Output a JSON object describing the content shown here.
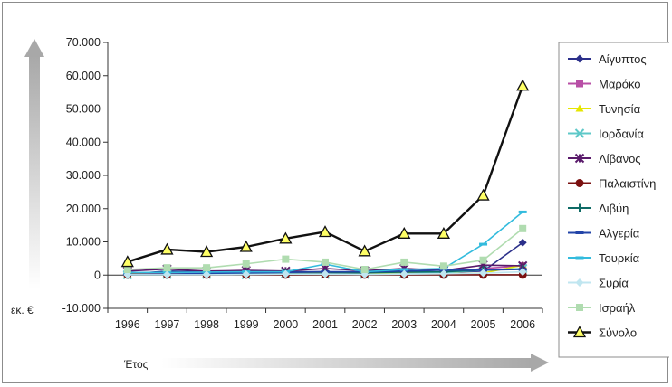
{
  "chart_data": {
    "type": "line",
    "title": "",
    "xlabel": "Έτος",
    "ylabel": "εκ. €",
    "ylim": [
      -10000,
      70000
    ],
    "y_ticks": [
      "-10.000",
      "0",
      "10.000",
      "20.000",
      "30.000",
      "40.000",
      "50.000",
      "60.000",
      "70.000"
    ],
    "categories": [
      "1996",
      "1997",
      "1998",
      "1999",
      "2000",
      "2001",
      "2002",
      "2003",
      "2004",
      "2005",
      "2006"
    ],
    "legend_position": "right",
    "grid": false,
    "series": [
      {
        "name": "Αίγυπτος",
        "color": "#2b2f8a",
        "marker": "diamond",
        "values": [
          300,
          1200,
          1000,
          700,
          1000,
          1000,
          600,
          1500,
          800,
          1200,
          9800
        ]
      },
      {
        "name": "Μαρόκο",
        "color": "#b84fa6",
        "marker": "square",
        "values": [
          300,
          500,
          600,
          800,
          600,
          500,
          400,
          500,
          700,
          2000,
          2800
        ]
      },
      {
        "name": "Τυνησία",
        "color": "#e6e600",
        "marker": "triangle",
        "values": [
          300,
          300,
          400,
          500,
          700,
          500,
          600,
          500,
          500,
          600,
          3000
        ]
      },
      {
        "name": "Ιορδανία",
        "color": "#5ec8c8",
        "marker": "x",
        "values": [
          100,
          200,
          200,
          100,
          400,
          200,
          200,
          400,
          700,
          1500,
          2000
        ]
      },
      {
        "name": "Λίβανος",
        "color": "#5a1a6b",
        "marker": "star",
        "values": [
          1200,
          1800,
          1200,
          1400,
          1200,
          2000,
          1300,
          2000,
          1400,
          3000,
          2800
        ]
      },
      {
        "name": "Παλαιστίνη",
        "color": "#7a1010",
        "marker": "circle",
        "values": [
          100,
          100,
          100,
          100,
          100,
          200,
          100,
          100,
          100,
          100,
          100
        ]
      },
      {
        "name": "Λιβύη",
        "color": "#0f6b66",
        "marker": "plus",
        "values": [
          100,
          100,
          200,
          300,
          500,
          500,
          700,
          900,
          1000,
          1500,
          1800
        ]
      },
      {
        "name": "Αλγερία",
        "color": "#2244a8",
        "marker": "dash",
        "values": [
          200,
          300,
          500,
          600,
          800,
          1000,
          1000,
          1200,
          1500,
          1500,
          1700
        ]
      },
      {
        "name": "Τουρκία",
        "color": "#33bbdd",
        "marker": "dash",
        "values": [
          800,
          800,
          900,
          1000,
          1000,
          3300,
          1000,
          1700,
          2000,
          9300,
          19000
        ]
      },
      {
        "name": "Συρία",
        "color": "#c0e6f0",
        "marker": "diamond",
        "values": [
          100,
          100,
          100,
          200,
          300,
          300,
          200,
          300,
          400,
          600,
          1000
        ]
      },
      {
        "name": "Ισραήλ",
        "color": "#b0dcb0",
        "marker": "square",
        "values": [
          1700,
          2200,
          2200,
          3400,
          4800,
          3900,
          1700,
          3900,
          2700,
          4500,
          14000
        ]
      },
      {
        "name": "Σύνολο",
        "color": "#111111",
        "marker": "triangle-outline",
        "values": [
          4000,
          7700,
          7000,
          8500,
          11000,
          13000,
          7200,
          12500,
          12500,
          24000,
          57000
        ]
      }
    ]
  }
}
